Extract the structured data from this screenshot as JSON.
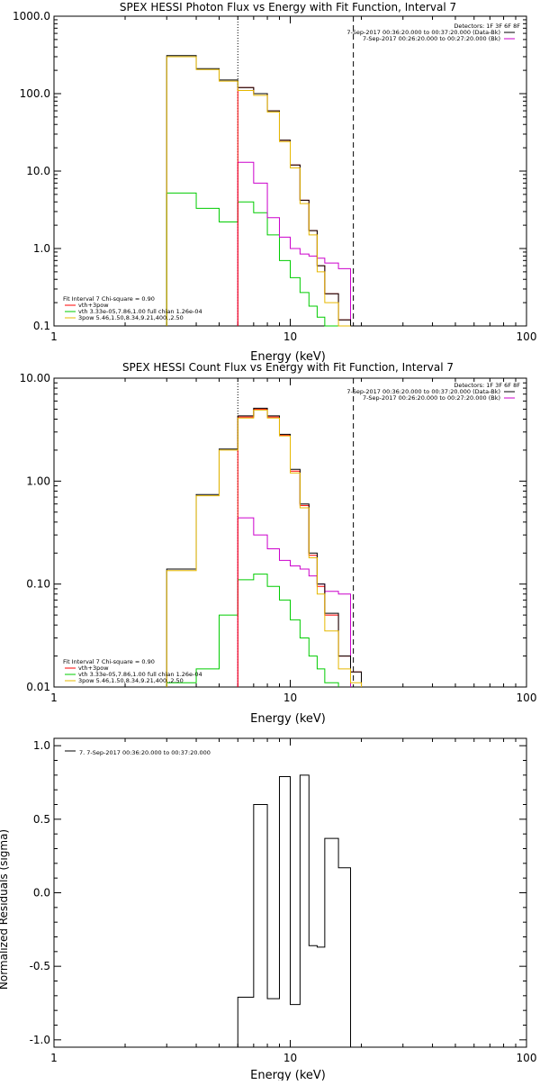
{
  "colors": {
    "data": "#000000",
    "background": "#ff0000",
    "total_fit": "#cc00cc",
    "thermal": "#00cc00",
    "power_law": "#e6b800",
    "fit_range": "#000000"
  },
  "chart_data": [
    {
      "id": "photon",
      "type": "line",
      "step": true,
      "title": "SPEX HESSI Photon Flux vs Energy with Fit Function, Interval 7",
      "xlabel": "Energy (keV)",
      "ylabel": "",
      "xscale": "log",
      "yscale": "log",
      "xlim": [
        1,
        100
      ],
      "ylim": [
        0.1,
        1000
      ],
      "xticks": [
        {
          "v": 1,
          "label": "1"
        },
        {
          "v": 10,
          "label": "10"
        },
        {
          "v": 100,
          "label": "100"
        }
      ],
      "yticks": [
        {
          "v": 0.1,
          "label": "0.1"
        },
        {
          "v": 1,
          "label": "1.0"
        },
        {
          "v": 10,
          "label": "10.0"
        },
        {
          "v": 100,
          "label": "100.0"
        },
        {
          "v": 1000,
          "label": "1000.0"
        }
      ],
      "vlines": [
        {
          "x": 6.0,
          "style": "dotted"
        },
        {
          "x": 18.5,
          "style": "dashed"
        }
      ],
      "bin_edges": [
        3.0,
        4.0,
        5.0,
        6.0,
        7.0,
        8.0,
        9.0,
        10.0,
        11.0,
        12.0,
        13.0,
        14.0,
        16.0,
        18.0,
        20.0
      ],
      "series": [
        {
          "key": "data",
          "color_key": "data",
          "bin_start": 0,
          "values": [
            310,
            210,
            150,
            120,
            100,
            60,
            25,
            12,
            4.2,
            1.7,
            0.6,
            0.26,
            0.12,
            0.1
          ]
        },
        {
          "key": "background",
          "color_key": "background",
          "bin_start": 3,
          "values": [
            120,
            100,
            60,
            25,
            12,
            4.2,
            1.7,
            0.6,
            0.26,
            0.12,
            0.1
          ]
        },
        {
          "key": "fit_total",
          "color_key": "total_fit",
          "bin_start": 3,
          "values": [
            13,
            7,
            2.5,
            1.4,
            1.0,
            0.85,
            0.8,
            0.75,
            0.65,
            0.55
          ]
        },
        {
          "key": "thermal",
          "color_key": "thermal",
          "bin_start": 0,
          "values": [
            5.2,
            3.3,
            2.2,
            4.0,
            2.9,
            1.5,
            0.7,
            0.42,
            0.27,
            0.18,
            0.13,
            0.1
          ]
        },
        {
          "key": "power_law",
          "color_key": "power_law",
          "bin_start": 0,
          "values": [
            300,
            205,
            145,
            110,
            95,
            58,
            24,
            11,
            3.8,
            1.5,
            0.5,
            0.2,
            0.1
          ]
        }
      ],
      "legend_top": {
        "header": "Detectors: 1F 3F 6F 8F",
        "entries": [
          {
            "text": "7-Sep-2017 00:36:20.000 to 00:37:20.000 (Data-Bk)",
            "color_key": "data"
          },
          {
            "text": "7-Sep-2017 00:26:20.000 to 00:27:20.000 (Bk)",
            "color_key": "total_fit"
          }
        ]
      },
      "legend_bottom": {
        "header": "Fit Interval  7   Chi-square = 0.90",
        "entries": [
          {
            "text": "vth+3pow",
            "color_key": "background"
          },
          {
            "text": "vth 3.33e-05,7.86,1.00  full chian 1.26e-04",
            "color_key": "thermal"
          },
          {
            "text": "3pow 5.46,1.50,8.34,9.21,400.,2.50",
            "color_key": "power_law"
          }
        ]
      }
    },
    {
      "id": "count",
      "type": "line",
      "step": true,
      "title": "SPEX HESSI Count Flux vs Energy with Fit Function, Interval 7",
      "xlabel": "Energy (keV)",
      "ylabel": "",
      "xscale": "log",
      "yscale": "log",
      "xlim": [
        1,
        100
      ],
      "ylim": [
        0.01,
        10
      ],
      "xticks": [
        {
          "v": 1,
          "label": "1"
        },
        {
          "v": 10,
          "label": "10"
        },
        {
          "v": 100,
          "label": "100"
        }
      ],
      "yticks": [
        {
          "v": 0.01,
          "label": "0.01"
        },
        {
          "v": 0.1,
          "label": "0.10"
        },
        {
          "v": 1,
          "label": "1.00"
        },
        {
          "v": 10,
          "label": "10.00"
        }
      ],
      "vlines": [
        {
          "x": 6.0,
          "style": "dotted"
        },
        {
          "x": 18.5,
          "style": "dashed"
        }
      ],
      "bin_edges": [
        3.0,
        4.0,
        5.0,
        6.0,
        7.0,
        8.0,
        9.0,
        10.0,
        11.0,
        12.0,
        13.0,
        14.0,
        16.0,
        18.0,
        20.0
      ],
      "series": [
        {
          "key": "data",
          "color_key": "data",
          "bin_start": 0,
          "values": [
            0.14,
            0.74,
            2.05,
            4.3,
            5.1,
            4.3,
            2.85,
            1.3,
            0.6,
            0.2,
            0.1,
            0.052,
            0.02,
            0.014
          ]
        },
        {
          "key": "background",
          "color_key": "background",
          "bin_start": 3,
          "values": [
            4.2,
            5.0,
            4.2,
            2.8,
            1.25,
            0.58,
            0.19,
            0.095,
            0.05,
            0.02,
            0.014
          ]
        },
        {
          "key": "fit_total",
          "color_key": "total_fit",
          "bin_start": 3,
          "values": [
            0.44,
            0.3,
            0.22,
            0.17,
            0.15,
            0.14,
            0.12,
            0.1,
            0.085,
            0.08
          ]
        },
        {
          "key": "thermal",
          "color_key": "thermal",
          "bin_start": 0,
          "values": [
            0.011,
            0.015,
            0.05,
            0.11,
            0.125,
            0.095,
            0.07,
            0.045,
            0.03,
            0.02,
            0.015,
            0.011
          ]
        },
        {
          "key": "power_law",
          "color_key": "power_law",
          "bin_start": 0,
          "values": [
            0.135,
            0.72,
            2.0,
            4.1,
            4.9,
            4.1,
            2.75,
            1.2,
            0.55,
            0.18,
            0.08,
            0.035,
            0.015,
            0.011
          ]
        }
      ],
      "legend_top": {
        "header": "Detectors: 1F 3F 6F 8F",
        "entries": [
          {
            "text": "7-Sep-2017 00:36:20.000 to 00:37:20.000 (Data-Bk)",
            "color_key": "data"
          },
          {
            "text": "7-Sep-2017 00:26:20.000 to 00:27:20.000 (Bk)",
            "color_key": "total_fit"
          }
        ]
      },
      "legend_bottom": {
        "header": "Fit Interval  7   Chi-square = 0.90",
        "entries": [
          {
            "text": "vth+3pow",
            "color_key": "background"
          },
          {
            "text": "vth 3.33e-05,7.86,1.00  full chian 1.26e-04",
            "color_key": "thermal"
          },
          {
            "text": "3pow 5.46,1.50,8.34,9.21,400.,2.50",
            "color_key": "power_law"
          }
        ]
      }
    },
    {
      "id": "resid",
      "type": "line",
      "step": true,
      "title": "",
      "xlabel": "Energy (keV)",
      "ylabel": "Normalized Residuals (sigma)",
      "xscale": "log",
      "yscale": "linear",
      "xlim": [
        1,
        100
      ],
      "ylim": [
        -1.05,
        1.05
      ],
      "xticks": [
        {
          "v": 1,
          "label": "1"
        },
        {
          "v": 10,
          "label": "10"
        },
        {
          "v": 100,
          "label": "100"
        }
      ],
      "yticks": [
        {
          "v": -1,
          "label": "-1.0"
        },
        {
          "v": -0.5,
          "label": "-0.5"
        },
        {
          "v": 0,
          "label": "0.0"
        },
        {
          "v": 0.5,
          "label": "0.5"
        },
        {
          "v": 1,
          "label": "1.0"
        }
      ],
      "vlines": [],
      "resid_edges": [
        6.0,
        7.0,
        8.0,
        9.0,
        10.0,
        11.0,
        12.0,
        13.0,
        14.0,
        16.0,
        18.0
      ],
      "series": [
        {
          "key": "residuals",
          "color_key": "data",
          "values": [
            -0.71,
            0.6,
            -0.72,
            0.79,
            -0.76,
            0.8,
            -0.36,
            -0.37,
            0.37,
            0.17
          ]
        }
      ],
      "legend_top": {
        "header": "",
        "entries": [
          {
            "text": "7.  7-Sep-2017 00:36:20.000 to 00:37:20.000",
            "color_key": "data"
          }
        ]
      }
    }
  ]
}
